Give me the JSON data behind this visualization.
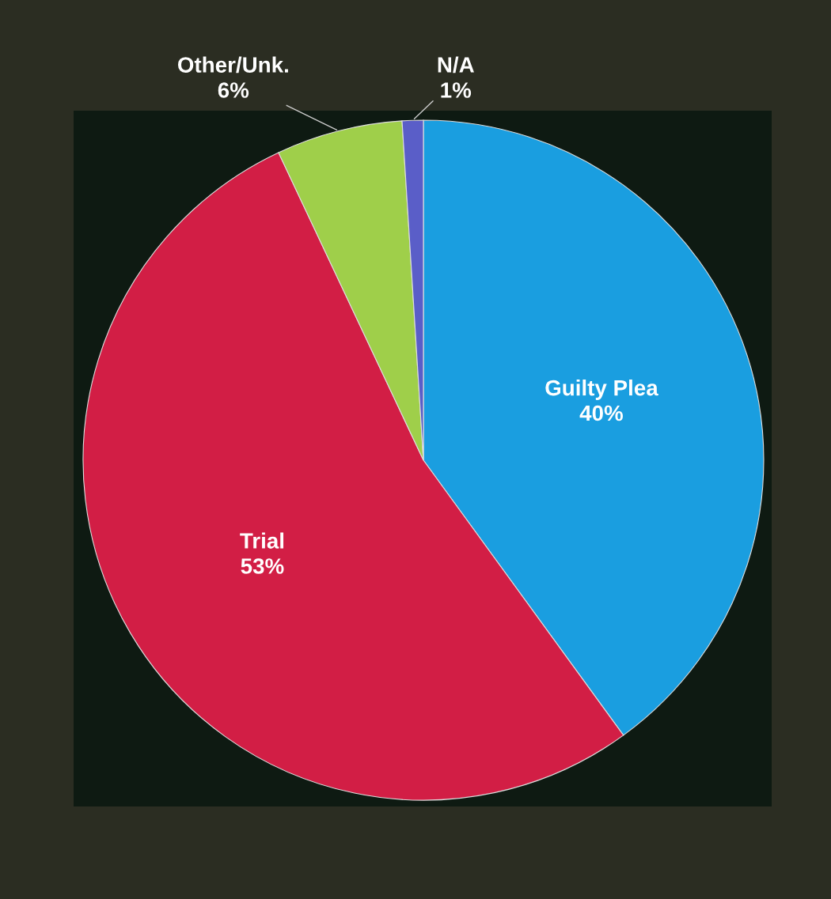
{
  "chart_data": {
    "type": "pie",
    "categories": [
      "Guilty Plea",
      "Trial",
      "Other/Unk.",
      "N/A"
    ],
    "values": [
      40,
      53,
      6,
      1
    ],
    "value_labels": [
      "40%",
      "53%",
      "6%",
      "1%"
    ],
    "colors": [
      "#1a9ee0",
      "#d21e45",
      "#9fcf4a",
      "#5a5ec8"
    ],
    "legend": false
  }
}
